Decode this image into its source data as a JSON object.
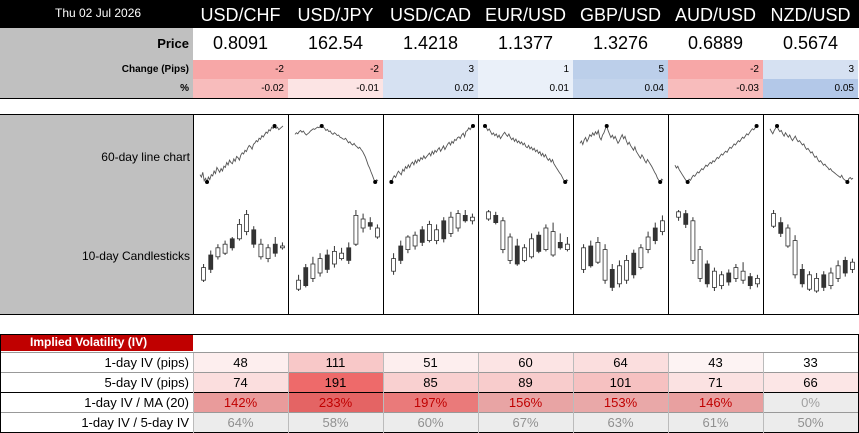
{
  "header": {
    "date": "Thu 02 Jul 2026"
  },
  "pairs": [
    "USD/CHF",
    "USD/JPY",
    "USD/CAD",
    "EUR/USD",
    "GBP/USD",
    "AUD/USD",
    "NZD/USD"
  ],
  "price_block": {
    "price_label": "Price",
    "change_label": "Change (Pips)",
    "pct_label": "%",
    "prices": [
      "0.8091",
      "162.54",
      "1.4218",
      "1.1377",
      "1.3276",
      "0.6889",
      "0.5674"
    ],
    "changes": [
      "-2",
      "-2",
      "3",
      "1",
      "5",
      "-2",
      "3"
    ],
    "pcts": [
      "-0.02",
      "-0.01",
      "0.02",
      "0.01",
      "0.04",
      "-0.03",
      "0.05"
    ],
    "change_colors": [
      "#f7a7a7",
      "#f7a7a7",
      "#d6e1f2",
      "#eaf0f9",
      "#bccfea",
      "#f7a7a7",
      "#d6e1f2"
    ],
    "pct_colors": [
      "#f8bcbc",
      "#fce4e4",
      "#d6e1f2",
      "#eaf0f9",
      "#c3d4ec",
      "#f8bcbc",
      "#b3c8e8"
    ]
  },
  "charts": {
    "line_label": "60-day line chart",
    "candle_label": "10-day Candlesticks",
    "line_series": [
      [
        60,
        58,
        62,
        55,
        57,
        54,
        58,
        56,
        60,
        59,
        63,
        61,
        66,
        64,
        62,
        65,
        63,
        67,
        66,
        70,
        68,
        72,
        70,
        69,
        73,
        71,
        75,
        74,
        72,
        76,
        78,
        77,
        80,
        79,
        82,
        84,
        83,
        81,
        85,
        86,
        88,
        87,
        90,
        89,
        92,
        91,
        93,
        95,
        94,
        97,
        96,
        99,
        98,
        100,
        98,
        99,
        97,
        98,
        99,
        100
      ],
      [
        85,
        88,
        86,
        90,
        92,
        89,
        91,
        87,
        84,
        86,
        88,
        91,
        93,
        95,
        94,
        96,
        98,
        97,
        99,
        100,
        98,
        96,
        92,
        94,
        90,
        91,
        87,
        85,
        88,
        86,
        83,
        84,
        80,
        79,
        77,
        76,
        78,
        74,
        70,
        72,
        68,
        66,
        69,
        65,
        63,
        60,
        62,
        58,
        55,
        50,
        45,
        38,
        30,
        25,
        18,
        12,
        5,
        0,
        4,
        2
      ],
      [
        40,
        38,
        42,
        45,
        43,
        47,
        50,
        48,
        46,
        52,
        50,
        55,
        53,
        57,
        54,
        58,
        60,
        57,
        62,
        59,
        63,
        61,
        65,
        63,
        67,
        64,
        66,
        68,
        70,
        67,
        72,
        69,
        73,
        71,
        74,
        76,
        72,
        75,
        78,
        74,
        77,
        80,
        82,
        79,
        83,
        81,
        85,
        84,
        87,
        88,
        86,
        90,
        92,
        88,
        94,
        95,
        98,
        96,
        99,
        100
      ],
      [
        100,
        97,
        92,
        95,
        90,
        85,
        88,
        83,
        86,
        80,
        84,
        78,
        82,
        86,
        89,
        85,
        82,
        86,
        80,
        76,
        79,
        73,
        77,
        71,
        74,
        69,
        72,
        67,
        70,
        64,
        62,
        66,
        60,
        63,
        58,
        61,
        55,
        58,
        52,
        55,
        48,
        52,
        46,
        50,
        44,
        40,
        43,
        37,
        41,
        34,
        30,
        26,
        22,
        18,
        15,
        10,
        5,
        2,
        6,
        4
      ],
      [
        70,
        74,
        68,
        76,
        80,
        73,
        78,
        85,
        82,
        88,
        84,
        90,
        86,
        92,
        80,
        76,
        84,
        88,
        95,
        100,
        92,
        86,
        80,
        84,
        78,
        82,
        76,
        70,
        74,
        80,
        85,
        78,
        82,
        74,
        68,
        72,
        66,
        62,
        58,
        64,
        56,
        52,
        48,
        44,
        50,
        46,
        40,
        36,
        42,
        38,
        34,
        30,
        25,
        20,
        16,
        10,
        6,
        3,
        8,
        6
      ],
      [
        30,
        25,
        28,
        22,
        18,
        14,
        10,
        6,
        2,
        0,
        5,
        3,
        8,
        12,
        10,
        14,
        18,
        16,
        20,
        24,
        22,
        26,
        30,
        28,
        32,
        35,
        33,
        38,
        36,
        40,
        44,
        42,
        46,
        50,
        48,
        52,
        55,
        53,
        58,
        62,
        60,
        64,
        68,
        66,
        70,
        74,
        72,
        76,
        80,
        78,
        82,
        86,
        84,
        88,
        92,
        95,
        93,
        97,
        100,
        98
      ],
      [
        95,
        90,
        86,
        92,
        96,
        100,
        94,
        90,
        92,
        86,
        82,
        88,
        84,
        80,
        84,
        78,
        74,
        78,
        82,
        76,
        72,
        74,
        70,
        66,
        68,
        62,
        58,
        60,
        56,
        52,
        54,
        48,
        44,
        46,
        40,
        36,
        38,
        34,
        30,
        32,
        28,
        26,
        22,
        24,
        20,
        18,
        16,
        14,
        12,
        10,
        8,
        12,
        6,
        4,
        2,
        0,
        6,
        8,
        5,
        7
      ]
    ],
    "candles": [
      [
        [
          20,
          40,
          22,
          36
        ],
        [
          30,
          55,
          34,
          50
        ],
        [
          45,
          62,
          48,
          58
        ],
        [
          50,
          66,
          52,
          62
        ],
        [
          55,
          70,
          58,
          68
        ],
        [
          66,
          90,
          68,
          84
        ],
        [
          72,
          100,
          76,
          95
        ],
        [
          58,
          82,
          62,
          78
        ],
        [
          45,
          68,
          48,
          62
        ],
        [
          42,
          62,
          46,
          58
        ],
        [
          48,
          70,
          52,
          62
        ],
        [
          56,
          64,
          58,
          60
        ]
      ],
      [
        [
          10,
          28,
          12,
          22
        ],
        [
          14,
          40,
          16,
          36
        ],
        [
          20,
          48,
          24,
          40
        ],
        [
          26,
          52,
          30,
          46
        ],
        [
          30,
          56,
          34,
          50
        ],
        [
          36,
          60,
          40,
          54
        ],
        [
          44,
          58,
          46,
          52
        ],
        [
          40,
          64,
          44,
          58
        ],
        [
          60,
          100,
          62,
          94
        ],
        [
          75,
          96,
          80,
          90
        ],
        [
          78,
          92,
          82,
          86
        ],
        [
          68,
          84,
          70,
          80
        ]
      ],
      [
        [
          28,
          52,
          32,
          46
        ],
        [
          40,
          66,
          44,
          60
        ],
        [
          52,
          72,
          56,
          70
        ],
        [
          56,
          76,
          60,
          72
        ],
        [
          60,
          82,
          64,
          78
        ],
        [
          64,
          88,
          66,
          84
        ],
        [
          62,
          84,
          66,
          78
        ],
        [
          64,
          92,
          68,
          88
        ],
        [
          70,
          98,
          74,
          92
        ],
        [
          76,
          100,
          80,
          96
        ],
        [
          86,
          100,
          88,
          94
        ],
        [
          84,
          96,
          88,
          92
        ]
      ],
      [
        [
          88,
          100,
          90,
          98
        ],
        [
          84,
          98,
          86,
          94
        ],
        [
          52,
          92,
          56,
          88
        ],
        [
          40,
          74,
          44,
          70
        ],
        [
          38,
          68,
          40,
          60
        ],
        [
          42,
          62,
          44,
          58
        ],
        [
          46,
          74,
          48,
          68
        ],
        [
          52,
          76,
          54,
          72
        ],
        [
          54,
          84,
          56,
          80
        ],
        [
          48,
          86,
          50,
          76
        ],
        [
          56,
          74,
          58,
          64
        ],
        [
          54,
          70,
          56,
          62
        ]
      ],
      [
        [
          30,
          62,
          34,
          58
        ],
        [
          36,
          66,
          38,
          60
        ],
        [
          40,
          70,
          42,
          64
        ],
        [
          18,
          62,
          22,
          56
        ],
        [
          10,
          40,
          14,
          34
        ],
        [
          14,
          44,
          18,
          38
        ],
        [
          18,
          50,
          22,
          44
        ],
        [
          24,
          56,
          28,
          52
        ],
        [
          34,
          62,
          36,
          58
        ],
        [
          52,
          76,
          56,
          70
        ],
        [
          62,
          86,
          66,
          80
        ],
        [
          72,
          94,
          76,
          88
        ]
      ],
      [
        [
          88,
          100,
          92,
          98
        ],
        [
          80,
          100,
          84,
          96
        ],
        [
          40,
          92,
          44,
          88
        ],
        [
          20,
          60,
          24,
          56
        ],
        [
          14,
          44,
          18,
          40
        ],
        [
          10,
          36,
          14,
          32
        ],
        [
          12,
          32,
          16,
          28
        ],
        [
          16,
          34,
          20,
          30
        ],
        [
          20,
          40,
          24,
          36
        ],
        [
          18,
          42,
          22,
          32
        ],
        [
          12,
          30,
          16,
          26
        ],
        [
          14,
          28,
          18,
          24
        ]
      ],
      [
        [
          80,
          100,
          82,
          96
        ],
        [
          70,
          92,
          74,
          86
        ],
        [
          58,
          84,
          60,
          80
        ],
        [
          24,
          72,
          28,
          66
        ],
        [
          14,
          40,
          18,
          34
        ],
        [
          10,
          32,
          12,
          28
        ],
        [
          8,
          30,
          10,
          24
        ],
        [
          10,
          32,
          14,
          28
        ],
        [
          12,
          36,
          16,
          30
        ],
        [
          20,
          44,
          24,
          38
        ],
        [
          26,
          48,
          30,
          44
        ],
        [
          30,
          46,
          34,
          42
        ]
      ]
    ]
  },
  "iv": {
    "title": "Implied Volatility (IV)",
    "row_labels": [
      "1-day IV (pips)",
      "5-day IV (pips)",
      "1-day IV / MA (20)",
      "1-day IV / 5-day IV"
    ],
    "iv1": [
      "48",
      "111",
      "51",
      "60",
      "64",
      "43",
      "33"
    ],
    "iv5": [
      "74",
      "191",
      "85",
      "89",
      "101",
      "71",
      "66"
    ],
    "ma20": [
      "142%",
      "233%",
      "197%",
      "156%",
      "153%",
      "146%",
      "0%"
    ],
    "ratio": [
      "64%",
      "58%",
      "60%",
      "67%",
      "63%",
      "61%",
      "50%"
    ],
    "iv1_colors": [
      "#fdeeee",
      "#f8c8c8",
      "#fdeeee",
      "#fce4e4",
      "#fbdede",
      "#fdf3f3",
      "#ffffff"
    ],
    "iv5_colors": [
      "#fbdede",
      "#ee6a6a",
      "#f9d0d0",
      "#f8cccc",
      "#f6c1c1",
      "#fbe2e2",
      "#fce6e6"
    ],
    "ma20_colors": [
      "#e99b9b",
      "#e46464",
      "#ea7a7a",
      "#e8a4a4",
      "#e9a8a8",
      "#e8a0a0",
      "#ececec"
    ],
    "ma20_text_colors": [
      "#c00000",
      "#c00000",
      "#c00000",
      "#c00000",
      "#c00000",
      "#c00000",
      "#a0a0a0"
    ],
    "ratio_bg": "#ececec",
    "ratio_text_color": "#909090"
  }
}
